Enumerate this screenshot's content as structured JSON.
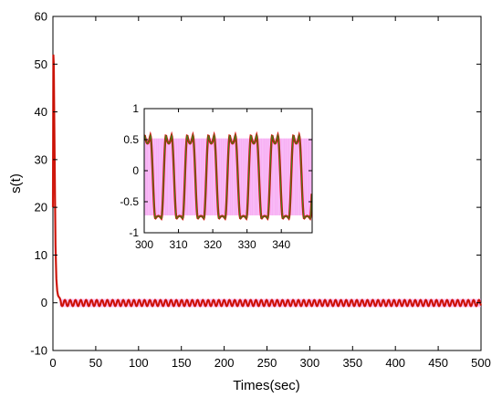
{
  "chart_data": [
    {
      "type": "line",
      "xlabel": "Times(sec)",
      "ylabel": "s(t)",
      "xlim": [
        0,
        500
      ],
      "ylim": [
        -10,
        60
      ],
      "x_ticks": [
        "0",
        "50",
        "100",
        "150",
        "200",
        "250",
        "300",
        "350",
        "400",
        "450",
        "500"
      ],
      "y_ticks": [
        "-10",
        "0",
        "10",
        "20",
        "30",
        "40",
        "50",
        "60"
      ],
      "grid": false,
      "series": [
        {
          "color": "#dd0000",
          "x": [
            0,
            0.5,
            1,
            1.5,
            2,
            3,
            4,
            5,
            6,
            7,
            8,
            9,
            10
          ],
          "y": [
            20,
            52,
            50,
            40,
            30,
            12,
            5,
            2.5,
            1.5,
            1.2,
            1.0,
            0.4,
            -0.6
          ]
        }
      ],
      "steady_state": {
        "x_start": 8,
        "x_end": 500,
        "amplitude": 0.65,
        "mean": -0.05,
        "period": 6.2,
        "envelope_color": "#f58ff0",
        "trace_colors": [
          "#dd0000",
          "#4a7a1a"
        ]
      }
    },
    {
      "type": "line",
      "xlim": [
        300,
        349
      ],
      "ylim": [
        -1,
        1
      ],
      "x_ticks": [
        "300",
        "310",
        "320",
        "330",
        "340"
      ],
      "y_ticks": [
        "-1",
        "-0.5",
        "0",
        "0.5",
        "1"
      ],
      "grid": false,
      "period": 6.2,
      "peak": 0.57,
      "trough": -0.77,
      "series": [
        {
          "color": "#dd0000"
        },
        {
          "color": "#4a7a1a"
        }
      ],
      "envelope_color": "#f58ff0"
    }
  ]
}
